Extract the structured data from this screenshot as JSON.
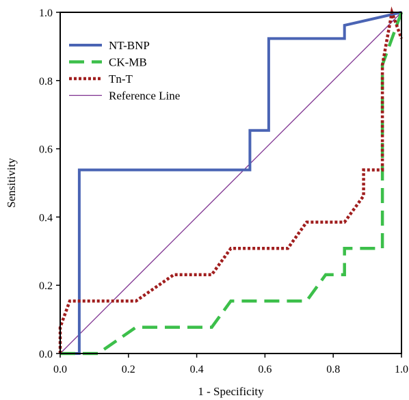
{
  "chart_data": {
    "type": "line",
    "title": "",
    "xlabel": "1 - Specificity",
    "ylabel": "Sensitivity",
    "xlim": [
      0,
      1
    ],
    "ylim": [
      0,
      1
    ],
    "xticks": [
      "0.0",
      "0.2",
      "0.4",
      "0.6",
      "0.8",
      "1.0"
    ],
    "yticks": [
      "0.0",
      "0.2",
      "0.4",
      "0.6",
      "0.8",
      "1.0"
    ],
    "grid": false,
    "legend_position": "top-left",
    "series": [
      {
        "name": "NT-BNP",
        "color": "#4a64b4",
        "style": "solid",
        "x": [
          0,
          0.056,
          0.056,
          0.556,
          0.556,
          0.611,
          0.611,
          0.833,
          0.833,
          1.0
        ],
        "y": [
          0,
          0,
          0.538,
          0.538,
          0.654,
          0.654,
          0.923,
          0.923,
          0.962,
          1.0
        ]
      },
      {
        "name": "CK-MB",
        "color": "#3cbf4a",
        "style": "dashed",
        "x": [
          0,
          0.111,
          0.222,
          0.444,
          0.5,
          0.722,
          0.778,
          0.833,
          0.833,
          0.944,
          0.944,
          1.0
        ],
        "y": [
          0,
          0,
          0.077,
          0.077,
          0.154,
          0.154,
          0.231,
          0.231,
          0.308,
          0.308,
          0.846,
          1.0
        ]
      },
      {
        "name": "Tn-T",
        "color": "#a01e1e",
        "style": "dotted",
        "x": [
          0,
          0,
          0.028,
          0.222,
          0.333,
          0.444,
          0.5,
          0.667,
          0.722,
          0.833,
          0.889,
          0.889,
          0.944,
          0.944,
          0.972,
          1.0
        ],
        "y": [
          0,
          0.077,
          0.154,
          0.154,
          0.231,
          0.231,
          0.308,
          0.308,
          0.385,
          0.385,
          0.462,
          0.538,
          0.538,
          0.846,
          1.0,
          0.923
        ]
      },
      {
        "name": "Reference Line",
        "color": "#7b2d8e",
        "style": "thin",
        "x": [
          0,
          1
        ],
        "y": [
          0,
          1
        ]
      }
    ]
  }
}
